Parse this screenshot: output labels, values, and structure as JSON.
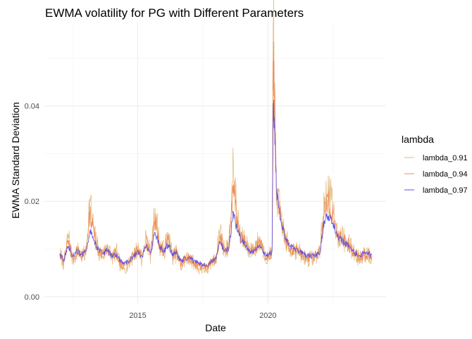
{
  "chart_data": {
    "type": "line",
    "title": "EWMA volatility for PG with Different Parameters",
    "xlabel": "Date",
    "ylabel": "EWMA Standard Deviation",
    "x_tick_labels": [
      "2015",
      "2020"
    ],
    "y_tick_labels": [
      "0.00",
      "0.02",
      "0.04"
    ],
    "xlim": [
      "2011-06-01",
      "2024-07-15"
    ],
    "ylim": [
      -0.0015,
      0.0575
    ],
    "grid": true,
    "legend": {
      "title": "lambda",
      "placement": "right"
    },
    "x": [
      "2012-01-03",
      "2012-03-01",
      "2012-05-01",
      "2012-07-02",
      "2012-09-04",
      "2012-11-01",
      "2013-01-02",
      "2013-03-01",
      "2013-05-01",
      "2013-07-01",
      "2013-09-03",
      "2013-11-01",
      "2014-01-02",
      "2014-03-03",
      "2014-05-01",
      "2014-07-01",
      "2014-09-02",
      "2014-11-03",
      "2015-01-02",
      "2015-03-02",
      "2015-05-01",
      "2015-07-01",
      "2015-09-01",
      "2015-11-02",
      "2016-01-04",
      "2016-03-01",
      "2016-05-02",
      "2016-07-01",
      "2016-09-01",
      "2016-11-01",
      "2017-01-03",
      "2017-03-01",
      "2017-05-01",
      "2017-07-03",
      "2017-09-01",
      "2017-11-01",
      "2018-01-02",
      "2018-03-01",
      "2018-05-01",
      "2018-07-02",
      "2018-09-04",
      "2018-11-01",
      "2019-01-02",
      "2019-03-01",
      "2019-05-01",
      "2019-07-01",
      "2019-09-03",
      "2019-11-01",
      "2020-01-02",
      "2020-02-28",
      "2020-03-16",
      "2020-04-01",
      "2020-05-01",
      "2020-07-01",
      "2020-09-01",
      "2020-11-02",
      "2021-01-04",
      "2021-03-01",
      "2021-05-03",
      "2021-07-01",
      "2021-09-01",
      "2021-11-01",
      "2022-01-03",
      "2022-03-01",
      "2022-05-02",
      "2022-07-01",
      "2022-09-01",
      "2022-11-01",
      "2023-01-03",
      "2023-03-01",
      "2023-05-01",
      "2023-07-03",
      "2023-09-01",
      "2023-11-01",
      "2023-12-29"
    ],
    "series": [
      {
        "name": "lambda_0.91",
        "color": "#e3be82",
        "values": [
          0.009,
          0.0068,
          0.013,
          0.0075,
          0.0098,
          0.0085,
          0.009,
          0.0205,
          0.013,
          0.0095,
          0.0085,
          0.011,
          0.008,
          0.0095,
          0.0065,
          0.006,
          0.0068,
          0.009,
          0.01,
          0.0078,
          0.0125,
          0.0085,
          0.0185,
          0.011,
          0.0095,
          0.013,
          0.0085,
          0.009,
          0.006,
          0.008,
          0.008,
          0.007,
          0.006,
          0.006,
          0.0055,
          0.007,
          0.008,
          0.0145,
          0.0095,
          0.011,
          0.0275,
          0.0155,
          0.012,
          0.0115,
          0.0095,
          0.01,
          0.012,
          0.0095,
          0.008,
          0.01,
          0.0575,
          0.042,
          0.021,
          0.017,
          0.012,
          0.01,
          0.01,
          0.0095,
          0.0085,
          0.008,
          0.008,
          0.0085,
          0.01,
          0.0195,
          0.0225,
          0.018,
          0.013,
          0.0125,
          0.0115,
          0.0105,
          0.009,
          0.008,
          0.009,
          0.009,
          0.0085
        ]
      },
      {
        "name": "lambda_0.94",
        "color": "#f08c5a",
        "values": [
          0.0088,
          0.0072,
          0.0118,
          0.008,
          0.0095,
          0.0085,
          0.0092,
          0.0175,
          0.0125,
          0.0095,
          0.0088,
          0.0102,
          0.0082,
          0.0092,
          0.007,
          0.0065,
          0.0072,
          0.0088,
          0.0098,
          0.0082,
          0.0115,
          0.0088,
          0.016,
          0.0108,
          0.0095,
          0.012,
          0.0088,
          0.009,
          0.0068,
          0.008,
          0.008,
          0.0072,
          0.0065,
          0.0063,
          0.006,
          0.0072,
          0.008,
          0.013,
          0.0095,
          0.0105,
          0.0235,
          0.0145,
          0.0118,
          0.0112,
          0.0095,
          0.01,
          0.0115,
          0.0095,
          0.0082,
          0.0098,
          0.051,
          0.04,
          0.022,
          0.0165,
          0.012,
          0.0102,
          0.01,
          0.0095,
          0.0088,
          0.0082,
          0.0082,
          0.0085,
          0.0098,
          0.0175,
          0.02,
          0.017,
          0.0128,
          0.0122,
          0.0112,
          0.0105,
          0.0092,
          0.0082,
          0.009,
          0.009,
          0.0086
        ]
      },
      {
        "name": "lambda_0.97",
        "color": "#5f4fe0",
        "values": [
          0.009,
          0.0078,
          0.0105,
          0.0085,
          0.0095,
          0.0088,
          0.0095,
          0.014,
          0.0118,
          0.0098,
          0.009,
          0.0098,
          0.0085,
          0.009,
          0.0075,
          0.007,
          0.0075,
          0.0085,
          0.0095,
          0.0085,
          0.0105,
          0.009,
          0.0135,
          0.0105,
          0.0095,
          0.011,
          0.009,
          0.009,
          0.0075,
          0.008,
          0.008,
          0.0075,
          0.007,
          0.0068,
          0.0065,
          0.0075,
          0.008,
          0.0115,
          0.0095,
          0.01,
          0.0178,
          0.0135,
          0.0115,
          0.0108,
          0.0095,
          0.0098,
          0.0108,
          0.0095,
          0.0085,
          0.0095,
          0.0405,
          0.036,
          0.022,
          0.016,
          0.012,
          0.0105,
          0.01,
          0.0095,
          0.009,
          0.0085,
          0.0085,
          0.0086,
          0.0095,
          0.016,
          0.017,
          0.0155,
          0.0125,
          0.0118,
          0.011,
          0.0102,
          0.0092,
          0.0085,
          0.009,
          0.009,
          0.0087
        ]
      }
    ]
  }
}
